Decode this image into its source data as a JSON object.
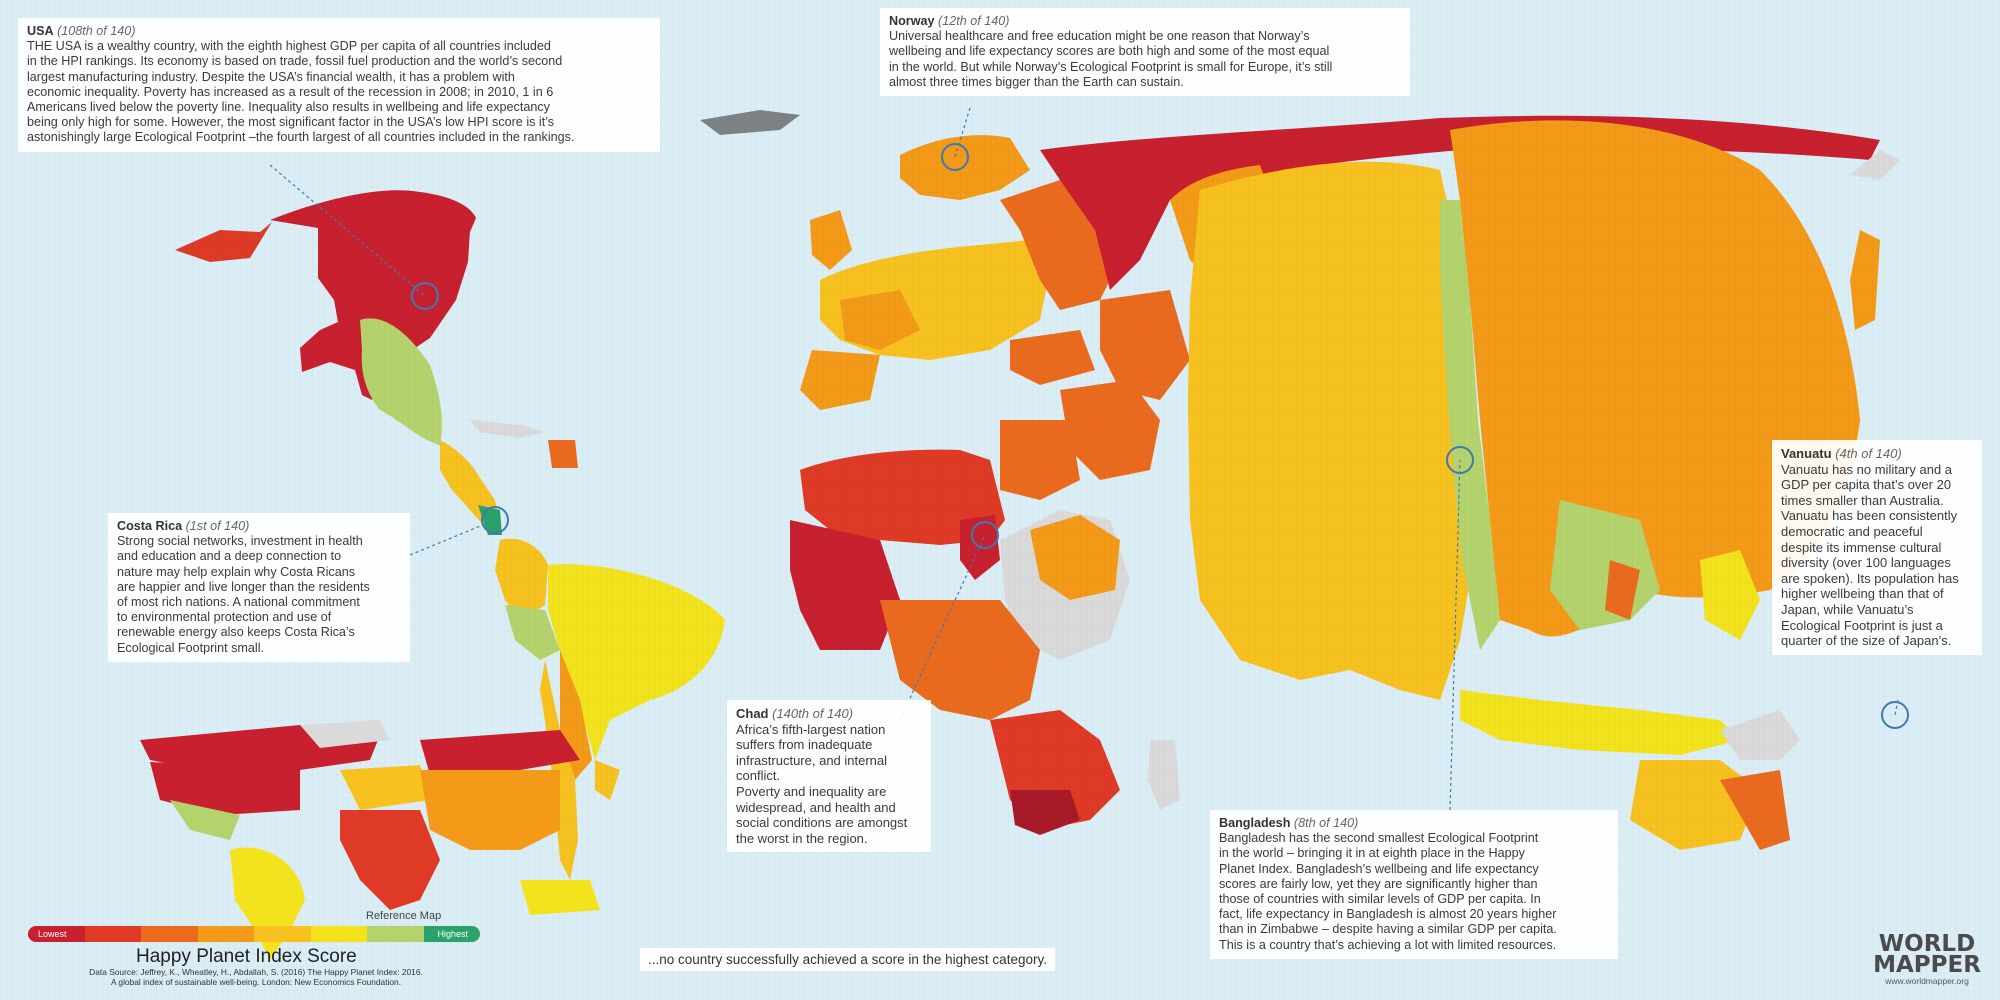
{
  "colors": {
    "ocean": "#dbeef6",
    "scale": [
      "#c8202e",
      "#de3a26",
      "#ea6a1e",
      "#f39a18",
      "#f7c21f",
      "#f2e31c",
      "#b5d36c",
      "#2aa36a"
    ],
    "no_data": "#dadada",
    "marker": "#3f79b5"
  },
  "callouts": {
    "usa": {
      "title": "USA",
      "rank": "(108th of 140)",
      "body": "THE USA is a wealthy country, with the eighth highest GDP per capita of all countries included\nin the HPI rankings. Its economy is based on trade, fossil fuel production and the world’s second\nlargest manufacturing industry. Despite the USA’s financial wealth, it has a problem with\neconomic inequality. Poverty has increased as a result of the recession in 2008; in 2010, 1 in 6\nAmericans lived below the poverty line. Inequality also results in wellbeing and life expectancy\nbeing only high for some. However, the most significant factor in the USA’s low HPI score is it’s\nastonishingly large Ecological Footprint –the fourth largest of all countries included in the rankings."
    },
    "norway": {
      "title": "Norway",
      "rank": "(12th of 140)",
      "body": "Universal healthcare and free education might be one reason that Norway’s\nwellbeing and life expectancy scores are both high and some of the most equal\nin the world.  But while Norway’s Ecological Footprint is small for Europe, it’s still\nalmost three times bigger than the Earth can sustain."
    },
    "costa_rica": {
      "title": "Costa Rica",
      "rank": "(1st of 140)",
      "body": "Strong social networks, investment in health\nand education and a deep connection to\nnature may help explain why Costa Ricans\nare happier and live longer than the residents\nof most rich nations. A national commitment\nto environmental protection and use of\nrenewable energy also keeps Costa Rica’s\nEcological Footprint small."
    },
    "chad": {
      "title": "Chad",
      "rank": "(140th of 140)",
      "body": "Africa’s fifth-largest nation\nsuffers from inadequate\ninfrastructure, and internal\nconflict.\nPoverty and inequality are\nwidespread, and health and\nsocial conditions are amongst\nthe worst in the region."
    },
    "bangladesh": {
      "title": "Bangladesh",
      "rank": "(8th of 140)",
      "body": "Bangladesh has the second smallest Ecological Footprint\nin the world – bringing it in at eighth place in the Happy\nPlanet Index. Bangladesh’s wellbeing and life expectancy\nscores are fairly low, yet they are significantly higher than\nthose of countries with similar levels of GDP per capita. In\nfact, life expectancy in Bangladesh is almost 20 years higher\nthan in Zimbabwe – despite having a similar GDP per capita.\nThis is a country that’s achieving a lot with limited resources."
    },
    "vanuatu": {
      "title": "Vanuatu",
      "rank": "(4th of 140)",
      "body": "Vanuatu has no military and a\nGDP per capita that’s over 20\ntimes smaller than Australia.\nVanuatu has been consistently\ndemocratic and peaceful\ndespite its immense cultural\ndiversity (over 100 languages\nare spoken). Its population has\nhigher wellbeing than that of\nJapan, while Vanuatu’s\nEcological Footprint is just a\nquarter of the size of Japan’s."
    }
  },
  "legend": {
    "reference_label": "Reference Map",
    "lowest": "Lowest",
    "highest": "Highest",
    "title": "Happy Planet Index Score",
    "source": "Data Source:  Jeffrey, K., Wheatley, H., Abdallah, S. (2016)  The Happy Planet Index: 2016.\nA global index of sustainable well-being. London: New Economics Foundation."
  },
  "bottom_note": "...no country successfully achieved a score in the highest category.",
  "logo": {
    "line1": "WORLD",
    "line2": "MAPPER",
    "url": "www.worldmapper.org"
  }
}
